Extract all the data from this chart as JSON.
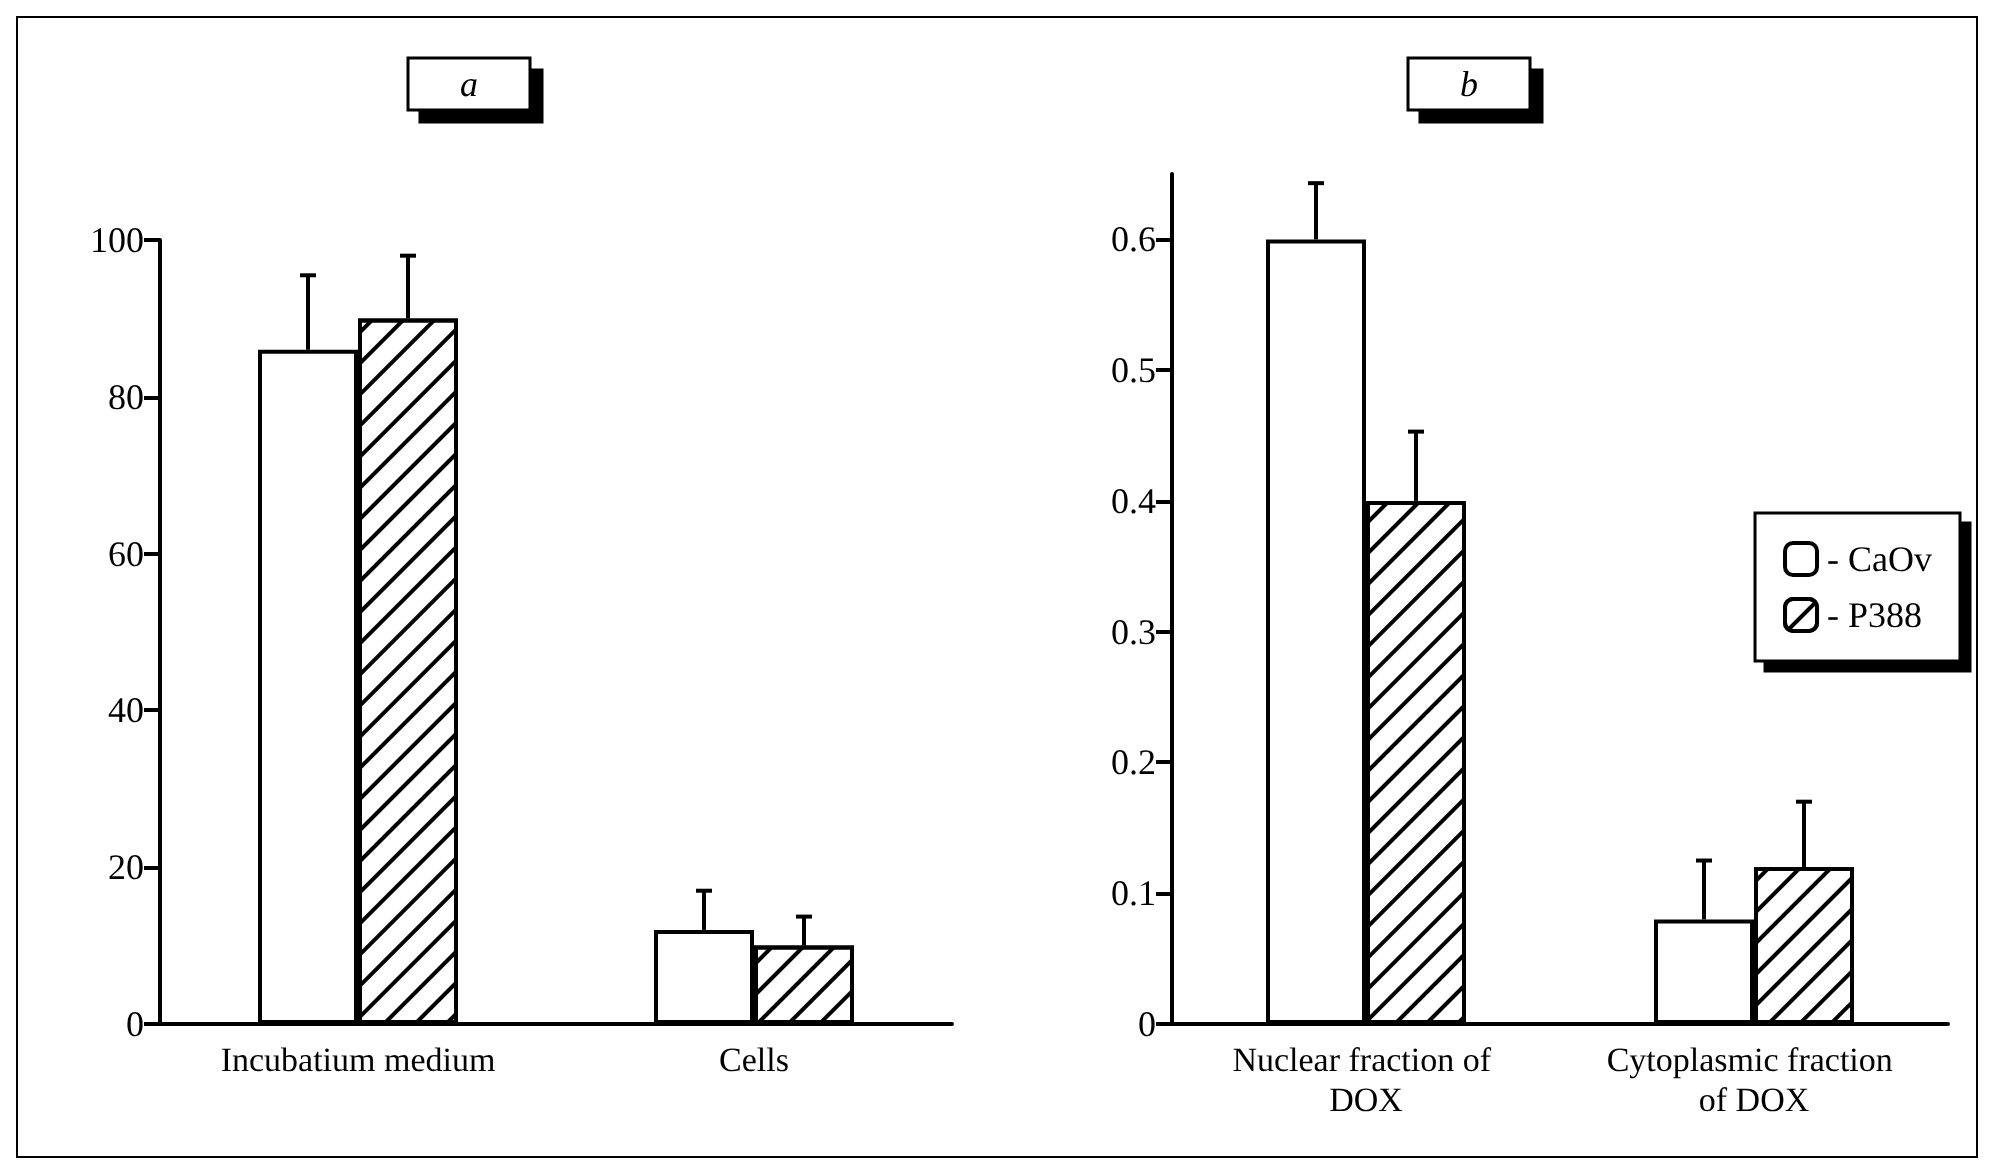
{
  "chart_data": [
    {
      "type": "bar",
      "title": "a",
      "categories": [
        "Incubatium medium",
        "Cells"
      ],
      "series": [
        {
          "color": "#ffffff",
          "values": [
            86,
            12
          ],
          "errors": [
            9.5,
            5
          ]
        },
        {
          "color": "#ffffff",
          "values": [
            90,
            10
          ],
          "errors": [
            8,
            3.7
          ]
        }
      ],
      "ylim": [
        0,
        100
      ],
      "yticks": [
        0,
        20,
        40,
        60,
        80,
        100
      ],
      "grid": false,
      "legend": false
    },
    {
      "type": "bar",
      "title": "b",
      "categories": [
        "Nuclear fraction of DOX",
        "Cytoplasmic fraction of DOX"
      ],
      "series": [
        {
          "name": "- CaOv",
          "color": "#ffffff",
          "values": [
            0.6,
            0.08
          ],
          "errors": [
            0.043,
            0.045
          ]
        },
        {
          "name": "- P388",
          "color": "#ffffff",
          "values": [
            0.4,
            0.12
          ],
          "errors": [
            0.053,
            0.05
          ]
        }
      ],
      "ylim": [
        0,
        0.65
      ],
      "yticks": [
        0,
        0.1,
        0.2,
        0.3,
        0.4,
        0.5,
        0.6
      ],
      "grid": false,
      "legend": "right"
    }
  ]
}
